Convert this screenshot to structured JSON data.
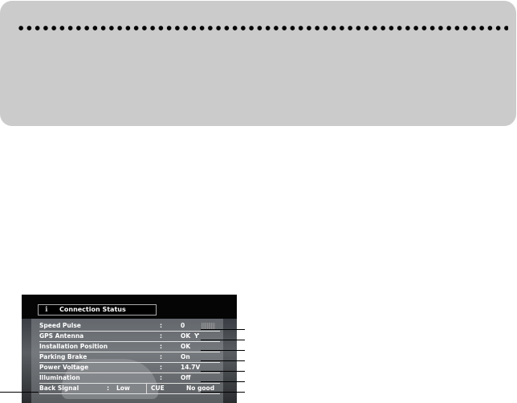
{
  "screen": {
    "title": "Connection Status",
    "title_icon": "info-icon",
    "rows": [
      {
        "label": "Speed Pulse",
        "value": "0",
        "extra_icon": "pulse-meter-icon"
      },
      {
        "label": "GPS Antenna",
        "value": "OK",
        "extra_icon": "antenna-icon"
      },
      {
        "label": "Installation  Position",
        "value": "OK"
      },
      {
        "label": "Parking  Brake",
        "value": "On"
      },
      {
        "label": "Power Voltage",
        "value": "14.7V"
      },
      {
        "label": "Illumination",
        "value": "Off"
      }
    ],
    "back_signal": {
      "label": "Back  Signal",
      "value": "Low",
      "cue_label": "CUE",
      "cue_value": "No good"
    },
    "separator": ":"
  }
}
